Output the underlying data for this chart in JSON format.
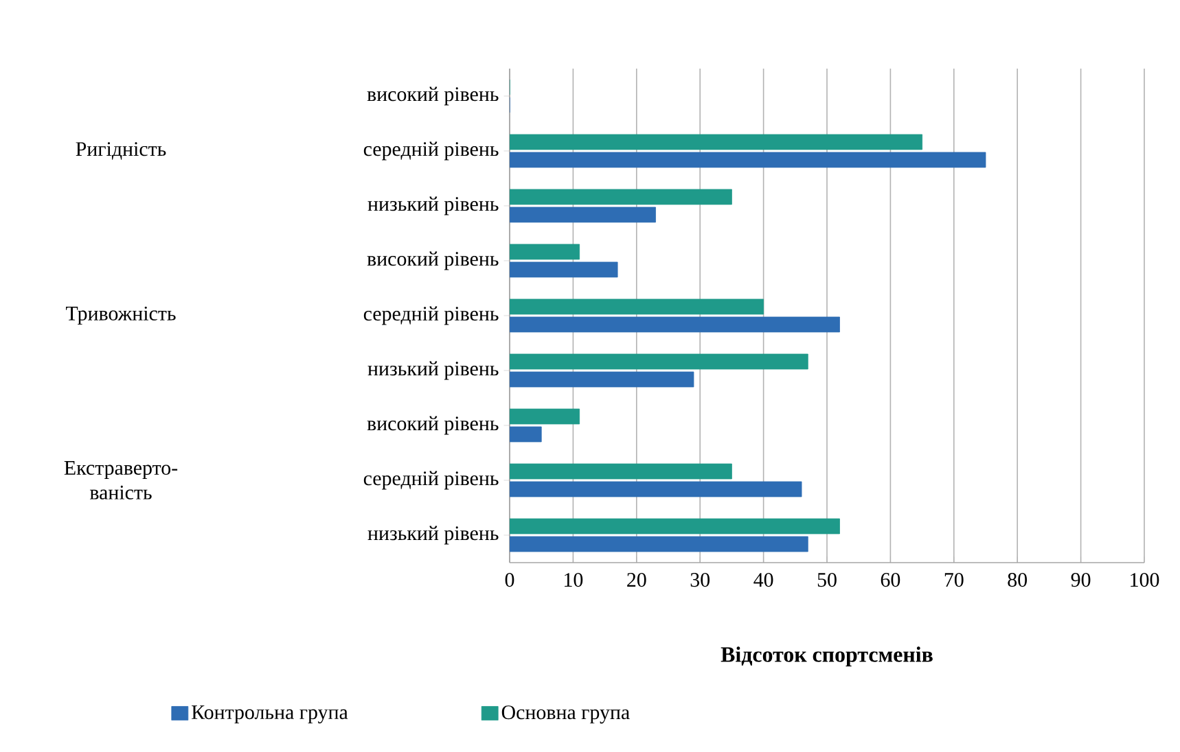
{
  "chart_data": {
    "type": "bar",
    "orientation": "horizontal",
    "xlabel": "Відсоток спортсменів",
    "categories": [
      "високий рівень",
      "середній рівень",
      "низький рівень",
      "високий рівень",
      "середній рівень",
      "низький рівень",
      "високий рівень",
      "середній рівень",
      "низький рівень"
    ],
    "series": [
      {
        "name": "Контрольна група",
        "color": "#2e6db4",
        "values": [
          0,
          75,
          23,
          17,
          52,
          29,
          5,
          46,
          47
        ]
      },
      {
        "name": "Основна група",
        "color": "#1f9a8a",
        "values": [
          0,
          65,
          35,
          11,
          40,
          47,
          11,
          35,
          52
        ]
      }
    ],
    "annotations": [
      "Ригідність",
      "Тривожність",
      "Екстраверто-ваність"
    ],
    "xlim": [
      0,
      100
    ],
    "xticks": [
      0,
      10,
      20,
      30,
      40,
      50,
      60,
      70,
      80,
      90,
      100
    ],
    "grid": "x",
    "legend": "bottom"
  }
}
